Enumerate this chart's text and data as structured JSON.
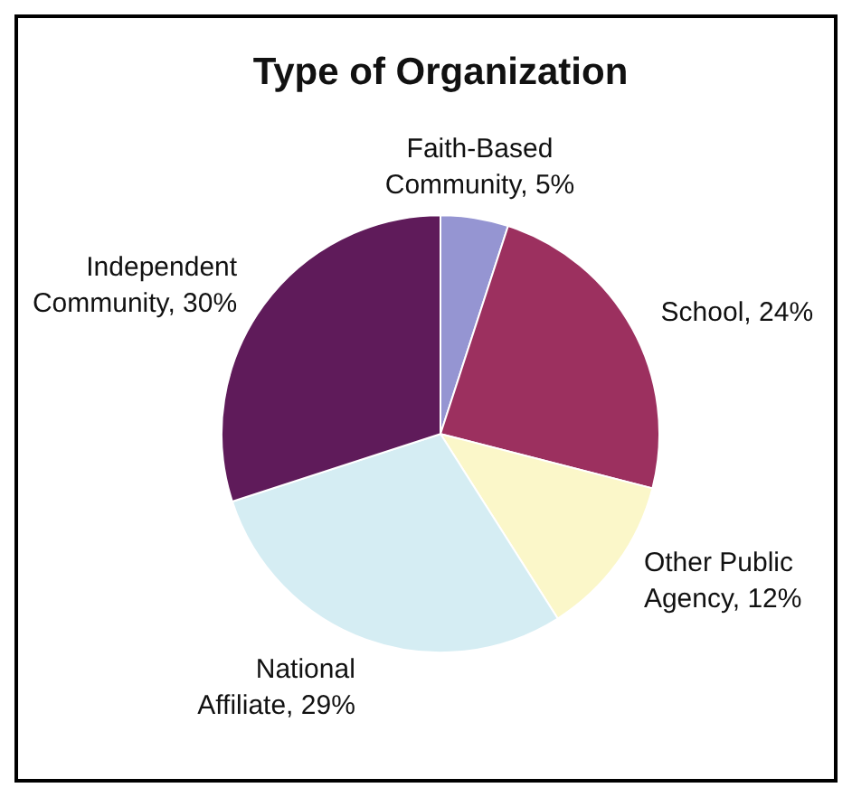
{
  "chart_data": {
    "type": "pie",
    "title": "Type of Organization",
    "categories": [
      "Faith-Based Community",
      "School",
      "Other Public Agency",
      "National Affiliate",
      "Independent Community"
    ],
    "values": [
      5,
      24,
      12,
      29,
      30
    ],
    "value_labels": [
      "5%",
      "24%",
      "12%",
      "29%",
      "30%"
    ],
    "colors": [
      "#9595d2",
      "#9c305f",
      "#fbf7c9",
      "#d5edf3",
      "#5f1b5a"
    ]
  }
}
